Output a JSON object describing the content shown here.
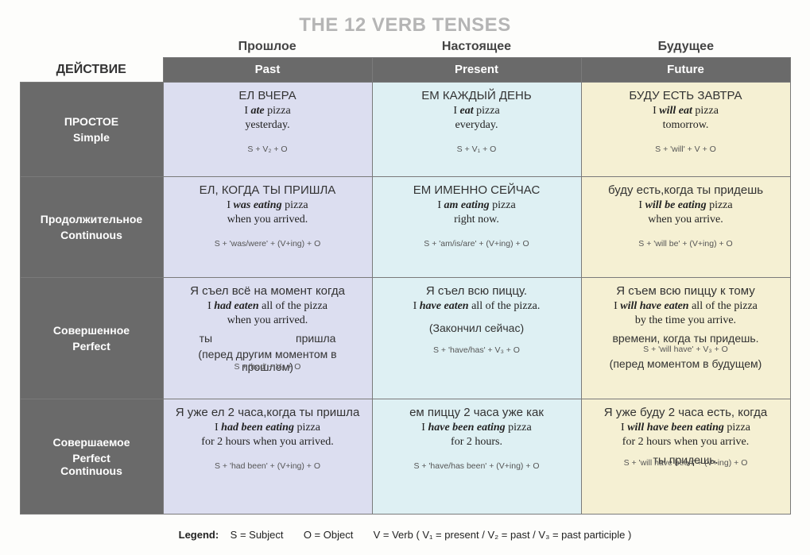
{
  "title": "THE 12 VERB TENSES",
  "action_label": "ДЕЙСТВИЕ",
  "top_labels": {
    "past": "Прошлое",
    "present": "Настоящее",
    "future": "Будущее"
  },
  "headers": {
    "past": "Past",
    "present": "Present",
    "future": "Future"
  },
  "colors": {
    "past_bg": "#dcdef0",
    "present_bg": "#def0f3",
    "future_bg": "#f5f0d3",
    "header_bg": "#6a6a6a",
    "header_fg": "#ffffff",
    "title_fg": "#b5b5b5"
  },
  "aspects": [
    {
      "ru": "ПРОСТОЕ",
      "en": "Simple"
    },
    {
      "ru": "Продолжительное",
      "en": "Continuous"
    },
    {
      "ru": "Совершенное",
      "en": "Perfect"
    },
    {
      "ru": "Совершаемое",
      "en": "Perfect\nContinuous"
    }
  ],
  "cells": {
    "simple": {
      "past": {
        "ru": "ЕЛ ВЧЕРА",
        "en_pre": "I ",
        "en_bold": "ate",
        "en_post": " pizza\nyesterday.",
        "formula": "S + V₂ + O"
      },
      "present": {
        "ru": "ЕМ КАЖДЫЙ ДЕНЬ",
        "en_pre": "I ",
        "en_bold": "eat",
        "en_post": " pizza\neveryday.",
        "formula": "S + V₁ + O"
      },
      "future": {
        "ru": "БУДУ ЕСТЬ ЗАВТРА",
        "en_pre": "I ",
        "en_bold": "will eat",
        "en_post": " pizza\ntomorrow.",
        "formula": "S + 'will' + V + O"
      }
    },
    "continuous": {
      "past": {
        "ru": "ЕЛ, КОГДА ТЫ ПРИШЛА",
        "en_pre": "I ",
        "en_bold": "was eating",
        "en_post": " pizza\nwhen you arrived.",
        "formula": "S + 'was/were' + (V+ing) + O"
      },
      "present": {
        "ru": "ЕМ ИМЕННО СЕЙЧАС",
        "en_pre": "I ",
        "en_bold": "am eating",
        "en_post": " pizza\nright now.",
        "formula": "S + 'am/is/are' + (V+ing) + O"
      },
      "future": {
        "ru": "буду есть,когда ты придешь",
        "en_pre": "I ",
        "en_bold": "will be eating",
        "en_post": " pizza\nwhen you arrive.",
        "formula": "S + 'will be' + (V+ing) + O"
      }
    },
    "perfect": {
      "past": {
        "ru": "Я съел всё на момент когда",
        "en_pre": "I ",
        "en_bold": "had eaten",
        "en_post": " all of the pizza\nwhen you arrived.",
        "note1": "ты                           пришла",
        "note2": "(перед другим моментом в\nпрошлом)",
        "formula": "S + 'had' + V₃ + O"
      },
      "present": {
        "ru": "Я съел всю пиццу.",
        "en_pre": "I ",
        "en_bold": "have eaten",
        "en_post": " all of the pizza.",
        "note1": "(Закончил сейчас)",
        "formula": "S + 'have/has' + V₃ + O"
      },
      "future": {
        "ru": "Я съем всю пиццу к тому",
        "en_pre": "I ",
        "en_bold": "will have eaten",
        "en_post": " all of the pizza\nby the time you arrive.",
        "note1": "времени, когда ты придешь.",
        "note2": "(перед моментом в будущем)",
        "formula": "S + 'will have' + V₃ + O"
      }
    },
    "perfcont": {
      "past": {
        "ru": "Я уже ел 2 часа,когда ты пришла",
        "en_pre": "I ",
        "en_bold": "had been eating",
        "en_post": " pizza\nfor 2 hours when you arrived.",
        "formula": "S + 'had been' + (V+ing) + O"
      },
      "present": {
        "ru": "ем пиццу 2 часа уже как",
        "en_pre": "I ",
        "en_bold": "have been eating",
        "en_post": " pizza\nfor 2 hours.",
        "formula": "S + 'have/has been' + (V+ing) + O"
      },
      "future": {
        "ru": "Я уже буду 2 часа есть, когда",
        "en_pre": "I ",
        "en_bold": "will have been eating",
        "en_post": " pizza\nfor 2 hours when you arrive.",
        "note1": "ты придешь.",
        "formula": "S + 'will have been' + (V+ing) + O"
      }
    }
  },
  "legend": {
    "label": "Legend:",
    "s": "S = Subject",
    "o": "O = Object",
    "v": "V = Verb  ( V₁ = present  /  V₂ = past  /  V₃ = past participle )"
  }
}
